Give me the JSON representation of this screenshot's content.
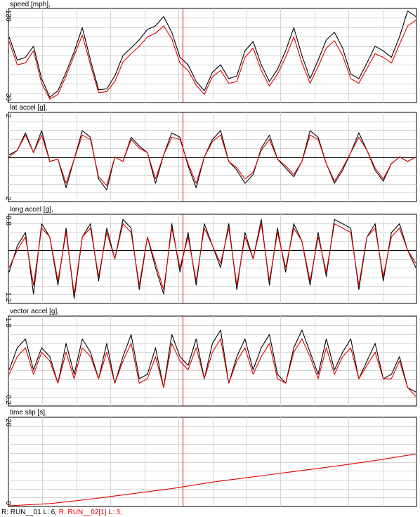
{
  "status": {
    "run1": "R: RUN__01  L: 6,",
    "run2": "R: RUN__02[1]  L: 3,",
    "run1_color": "#000000",
    "run2_color": "#e00000"
  },
  "chart_data": [
    {
      "type": "line",
      "title": "speed [mph],",
      "ylim": [
        30,
        130
      ],
      "ytick_top": "130",
      "ytick_bottom": "30",
      "zero_line": false,
      "grid": true,
      "x": [
        0,
        2,
        4,
        6,
        8,
        10,
        12,
        14,
        16,
        18,
        20,
        22,
        24,
        26,
        28,
        30,
        32,
        34,
        36,
        38,
        40,
        42,
        44,
        46,
        48,
        50,
        52,
        54,
        56,
        58,
        60,
        62,
        64,
        66,
        68,
        70,
        72,
        74,
        76,
        78,
        80,
        82,
        84,
        86,
        88,
        90,
        92,
        94,
        96,
        98,
        100
      ],
      "series": [
        {
          "name": "RUN__01",
          "color": "#000000",
          "values": [
            100,
            75,
            78,
            90,
            55,
            35,
            42,
            62,
            84,
            110,
            75,
            43,
            44,
            58,
            80,
            88,
            97,
            108,
            112,
            122,
            105,
            78,
            70,
            52,
            42,
            62,
            70,
            55,
            58,
            85,
            95,
            70,
            52,
            65,
            85,
            110,
            80,
            55,
            75,
            97,
            105,
            88,
            60,
            55,
            72,
            90,
            85,
            78,
            100,
            128,
            122
          ]
        },
        {
          "name": "RUN__02[1]",
          "color": "#e00000",
          "values": [
            95,
            70,
            72,
            85,
            50,
            33,
            38,
            58,
            80,
            102,
            70,
            40,
            41,
            52,
            73,
            82,
            90,
            100,
            104,
            112,
            98,
            72,
            64,
            48,
            38,
            57,
            64,
            50,
            52,
            78,
            88,
            64,
            47,
            60,
            78,
            100,
            72,
            50,
            68,
            88,
            96,
            80,
            55,
            50,
            66,
            82,
            78,
            72,
            92,
            112,
            118
          ]
        }
      ]
    },
    {
      "type": "line",
      "title": "lat accel [g],",
      "ylim": [
        -2,
        2
      ],
      "ytick_top": "2",
      "ytick_bottom": "-2",
      "zero_line": true,
      "grid": true,
      "x": [
        0,
        2,
        4,
        6,
        8,
        10,
        12,
        14,
        16,
        18,
        20,
        22,
        24,
        26,
        28,
        30,
        32,
        34,
        36,
        38,
        40,
        42,
        44,
        46,
        48,
        50,
        52,
        54,
        56,
        58,
        60,
        62,
        64,
        66,
        68,
        70,
        72,
        74,
        76,
        78,
        80,
        82,
        84,
        86,
        88,
        90,
        92,
        94,
        96,
        98,
        100
      ],
      "series": [
        {
          "name": "RUN__01",
          "color": "#000000",
          "values": [
            0.1,
            0.3,
            1.1,
            0.2,
            1.2,
            -0.2,
            -0.1,
            -1.4,
            -0.1,
            1.2,
            0.9,
            -1.0,
            -1.5,
            0.0,
            -0.2,
            0.9,
            0.5,
            0.2,
            -1.2,
            0.1,
            1.1,
            0.9,
            -0.4,
            -1.4,
            0.0,
            0.8,
            1.2,
            -0.2,
            -0.6,
            -1.2,
            -0.8,
            0.4,
            1.0,
            -0.1,
            -0.5,
            -0.9,
            -0.2,
            1.2,
            0.9,
            -0.3,
            -1.2,
            -0.6,
            0.2,
            1.1,
            0.3,
            -0.6,
            -1.1,
            -0.3,
            0.0,
            -0.2,
            0.0
          ]
        },
        {
          "name": "RUN__02[1]",
          "color": "#e00000",
          "values": [
            0.0,
            0.3,
            1.0,
            0.2,
            1.0,
            -0.2,
            -0.1,
            -1.2,
            -0.1,
            1.0,
            0.8,
            -0.9,
            -1.3,
            0.0,
            -0.2,
            0.8,
            0.4,
            0.2,
            -1.0,
            0.1,
            0.9,
            0.8,
            -0.3,
            -1.2,
            0.0,
            0.7,
            1.0,
            -0.2,
            -0.5,
            -1.0,
            -0.7,
            0.3,
            0.8,
            -0.1,
            -0.4,
            -0.8,
            -0.2,
            1.0,
            0.8,
            -0.3,
            -1.1,
            -0.5,
            0.2,
            0.9,
            0.3,
            -0.5,
            -1.0,
            -0.3,
            0.0,
            -0.2,
            0.0
          ]
        }
      ]
    },
    {
      "type": "line",
      "title": "long accel [g],",
      "ylim": [
        -1.2,
        0.8
      ],
      "ytick_top": "0.8",
      "ytick_bottom": "-1.2",
      "zero_line": true,
      "grid": true,
      "x": [
        0,
        2,
        4,
        6,
        8,
        10,
        12,
        14,
        16,
        18,
        20,
        22,
        24,
        26,
        28,
        30,
        32,
        34,
        36,
        38,
        40,
        42,
        44,
        46,
        48,
        50,
        52,
        54,
        56,
        58,
        60,
        62,
        64,
        66,
        68,
        70,
        72,
        74,
        76,
        78,
        80,
        82,
        84,
        86,
        88,
        90,
        92,
        94,
        96,
        98,
        100
      ],
      "series": [
        {
          "name": "RUN__01",
          "color": "#000000",
          "values": [
            -0.5,
            0.1,
            0.4,
            -1.0,
            0.6,
            0.3,
            -0.8,
            0.5,
            -1.1,
            0.3,
            0.6,
            -0.7,
            0.5,
            -0.2,
            0.7,
            0.5,
            -0.9,
            0.3,
            -0.4,
            -1.0,
            0.6,
            -0.5,
            0.4,
            -0.8,
            0.6,
            0.1,
            -0.4,
            0.6,
            -0.9,
            0.4,
            -0.2,
            0.7,
            -0.8,
            0.5,
            -0.5,
            0.6,
            0.2,
            -0.8,
            0.4,
            -0.6,
            0.7,
            0.6,
            0.5,
            -0.9,
            0.3,
            0.6,
            -0.7,
            0.4,
            0.6,
            0.0,
            -0.4
          ]
        },
        {
          "name": "RUN__02[1]",
          "color": "#e00000",
          "values": [
            -0.4,
            0.0,
            0.3,
            -0.8,
            0.5,
            0.3,
            -0.7,
            0.4,
            -1.0,
            0.3,
            0.5,
            -0.6,
            0.4,
            -0.2,
            0.6,
            0.4,
            -0.8,
            0.3,
            -0.3,
            -0.9,
            0.5,
            -0.4,
            0.3,
            -0.7,
            0.5,
            0.1,
            -0.3,
            0.5,
            -0.8,
            0.3,
            -0.2,
            0.6,
            -0.7,
            0.4,
            -0.4,
            0.5,
            0.2,
            -0.7,
            0.3,
            -0.5,
            0.6,
            0.5,
            0.4,
            -0.8,
            0.3,
            0.5,
            -0.6,
            0.3,
            0.5,
            0.0,
            -0.3
          ]
        }
      ]
    },
    {
      "type": "line",
      "title": "vector accel [g],",
      "ylim": [
        -0.2,
        1.8
      ],
      "ytick_top": "1.8",
      "ytick_bottom": "-0.2",
      "zero_line": false,
      "grid": true,
      "x": [
        0,
        2,
        4,
        6,
        8,
        10,
        12,
        14,
        16,
        18,
        20,
        22,
        24,
        26,
        28,
        30,
        32,
        34,
        36,
        38,
        40,
        42,
        44,
        46,
        48,
        50,
        52,
        54,
        56,
        58,
        60,
        62,
        64,
        66,
        68,
        70,
        72,
        74,
        76,
        78,
        80,
        82,
        84,
        86,
        88,
        90,
        92,
        94,
        96,
        98,
        100
      ],
      "series": [
        {
          "name": "RUN__01",
          "color": "#000000",
          "values": [
            0.6,
            1.1,
            1.3,
            0.6,
            1.1,
            0.9,
            0.3,
            1.2,
            0.5,
            1.3,
            1.0,
            0.4,
            1.2,
            0.3,
            0.9,
            1.4,
            0.4,
            0.5,
            1.1,
            0.2,
            1.4,
            0.9,
            0.7,
            1.3,
            0.4,
            1.2,
            1.5,
            0.3,
            0.9,
            1.3,
            0.6,
            1.1,
            1.4,
            0.5,
            0.3,
            1.1,
            1.5,
            1.0,
            0.5,
            1.3,
            0.6,
            1.0,
            1.3,
            0.4,
            0.8,
            1.2,
            0.4,
            0.5,
            0.9,
            0.2,
            0.1
          ]
        },
        {
          "name": "RUN__02[1]",
          "color": "#e00000",
          "values": [
            0.5,
            0.9,
            1.1,
            0.5,
            1.0,
            0.8,
            0.3,
            1.0,
            0.4,
            1.1,
            0.9,
            0.4,
            1.0,
            0.3,
            0.8,
            1.2,
            0.3,
            0.4,
            0.9,
            0.2,
            1.2,
            0.8,
            0.6,
            1.1,
            0.4,
            1.0,
            1.3,
            0.3,
            0.8,
            1.1,
            0.5,
            0.9,
            1.2,
            0.4,
            0.3,
            1.0,
            1.3,
            0.9,
            0.4,
            1.1,
            0.5,
            0.9,
            1.1,
            0.4,
            0.7,
            1.0,
            0.4,
            0.4,
            0.8,
            0.2,
            0.0
          ]
        }
      ]
    },
    {
      "type": "line",
      "title": "time slip [s],",
      "ylim": [
        0,
        20
      ],
      "ytick_top": "20",
      "ytick_bottom": "0",
      "zero_line": false,
      "grid": true,
      "x": [
        0,
        10,
        20,
        30,
        40,
        50,
        60,
        70,
        80,
        90,
        100
      ],
      "series": [
        {
          "name": "RUN__02[1]",
          "color": "#e00000",
          "values": [
            0,
            0.5,
            1.5,
            2.7,
            3.9,
            5.4,
            6.6,
            7.8,
            9.0,
            10.3,
            11.8
          ]
        }
      ]
    }
  ]
}
